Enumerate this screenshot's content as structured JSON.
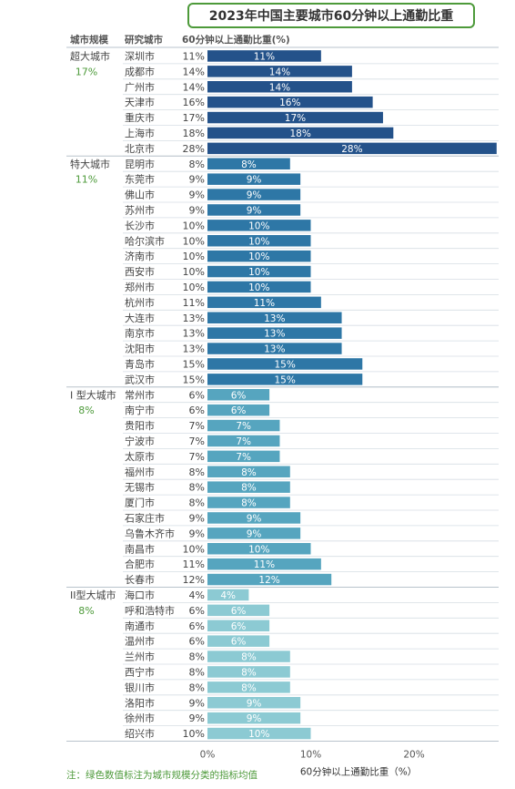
{
  "title": "2023年中国主要城市60分钟以上通勤比重",
  "note": "注：绿色数值标注为城市规模分类的指标均值",
  "colors": {
    "group_avg_text": "#4d9a3a",
    "超大城市": "#24528a",
    "特大城市": "#2e77a6",
    "I型大城市": "#56a5bf",
    "II型大城市": "#8ccad3"
  },
  "chart_data": {
    "type": "bar",
    "orientation": "horizontal",
    "title": "2023年中国主要城市60分钟以上通勤比重",
    "xlabel": "60分钟以上通勤比重（%）",
    "xlim": [
      0,
      28
    ],
    "xticks": [
      "0%",
      "10%",
      "20%"
    ],
    "xtick_values": [
      0,
      10,
      20
    ],
    "grid": false,
    "columns": [
      "城市规模",
      "研究城市",
      "60分钟以上通勤比重(%)"
    ],
    "groups": [
      {
        "name": "超大城市",
        "avg": "17%",
        "cities": [
          {
            "name": "深圳市",
            "value": 11,
            "label": "11%"
          },
          {
            "name": "成都市",
            "value": 14,
            "label": "14%"
          },
          {
            "name": "广州市",
            "value": 14,
            "label": "14%"
          },
          {
            "name": "天津市",
            "value": 16,
            "label": "16%"
          },
          {
            "name": "重庆市",
            "value": 17,
            "label": "17%"
          },
          {
            "name": "上海市",
            "value": 18,
            "label": "18%"
          },
          {
            "name": "北京市",
            "value": 28,
            "label": "28%"
          }
        ]
      },
      {
        "name": "特大城市",
        "avg": "11%",
        "cities": [
          {
            "name": "昆明市",
            "value": 8,
            "label": "8%"
          },
          {
            "name": "东莞市",
            "value": 9,
            "label": "9%"
          },
          {
            "name": "佛山市",
            "value": 9,
            "label": "9%"
          },
          {
            "name": "苏州市",
            "value": 9,
            "label": "9%"
          },
          {
            "name": "长沙市",
            "value": 10,
            "label": "10%"
          },
          {
            "name": "哈尔滨市",
            "value": 10,
            "label": "10%"
          },
          {
            "name": "济南市",
            "value": 10,
            "label": "10%"
          },
          {
            "name": "西安市",
            "value": 10,
            "label": "10%"
          },
          {
            "name": "郑州市",
            "value": 10,
            "label": "10%"
          },
          {
            "name": "杭州市",
            "value": 11,
            "label": "11%"
          },
          {
            "name": "大连市",
            "value": 13,
            "label": "13%"
          },
          {
            "name": "南京市",
            "value": 13,
            "label": "13%"
          },
          {
            "name": "沈阳市",
            "value": 13,
            "label": "13%"
          },
          {
            "name": "青岛市",
            "value": 15,
            "label": "15%"
          },
          {
            "name": "武汉市",
            "value": 15,
            "label": "15%"
          }
        ]
      },
      {
        "name": "I 型大城市",
        "avg": "8%",
        "cities": [
          {
            "name": "常州市",
            "value": 6,
            "label": "6%"
          },
          {
            "name": "南宁市",
            "value": 6,
            "label": "6%"
          },
          {
            "name": "贵阳市",
            "value": 7,
            "label": "7%"
          },
          {
            "name": "宁波市",
            "value": 7,
            "label": "7%"
          },
          {
            "name": "太原市",
            "value": 7,
            "label": "7%"
          },
          {
            "name": "福州市",
            "value": 8,
            "label": "8%"
          },
          {
            "name": "无锡市",
            "value": 8,
            "label": "8%"
          },
          {
            "name": "厦门市",
            "value": 8,
            "label": "8%"
          },
          {
            "name": "石家庄市",
            "value": 9,
            "label": "9%"
          },
          {
            "name": "乌鲁木齐市",
            "value": 9,
            "label": "9%"
          },
          {
            "name": "南昌市",
            "value": 10,
            "label": "10%"
          },
          {
            "name": "合肥市",
            "value": 11,
            "label": "11%"
          },
          {
            "name": "长春市",
            "value": 12,
            "label": "12%"
          }
        ]
      },
      {
        "name": "II型大城市",
        "avg": "8%",
        "cities": [
          {
            "name": "海口市",
            "value": 4,
            "label": "4%"
          },
          {
            "name": "呼和浩特市",
            "value": 6,
            "label": "6%"
          },
          {
            "name": "南通市",
            "value": 6,
            "label": "6%"
          },
          {
            "name": "温州市",
            "value": 6,
            "label": "6%"
          },
          {
            "name": "兰州市",
            "value": 8,
            "label": "8%"
          },
          {
            "name": "西宁市",
            "value": 8,
            "label": "8%"
          },
          {
            "name": "银川市",
            "value": 8,
            "label": "8%"
          },
          {
            "name": "洛阳市",
            "value": 9,
            "label": "9%"
          },
          {
            "name": "徐州市",
            "value": 9,
            "label": "9%"
          },
          {
            "name": "绍兴市",
            "value": 10,
            "label": "10%"
          }
        ]
      }
    ]
  }
}
